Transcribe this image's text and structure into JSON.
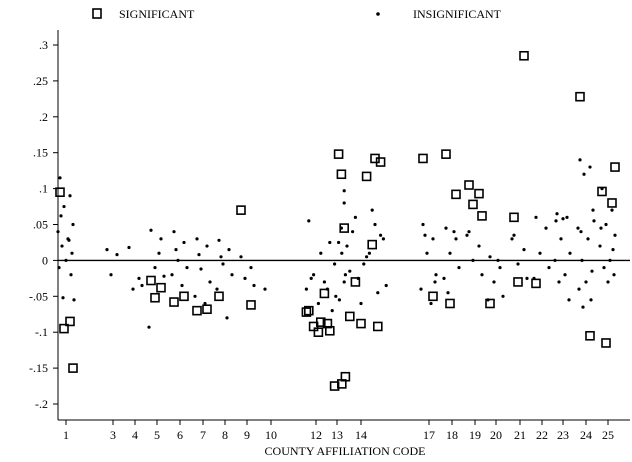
{
  "chart_data": {
    "type": "scatter",
    "xlabel": "COUNTY AFFILIATION CODE",
    "ylabel": "",
    "ylim": [
      -0.215,
      0.335
    ],
    "yticks": [
      {
        "value": 0.3,
        "label": ".3"
      },
      {
        "value": 0.25,
        "label": ".25"
      },
      {
        "value": 0.2,
        "label": ".2"
      },
      {
        "value": 0.15,
        "label": ".15"
      },
      {
        "value": 0.1,
        "label": ".1"
      },
      {
        "value": 0.05,
        "label": ".05"
      },
      {
        "value": 0,
        "label": "0"
      },
      {
        "value": -0.05,
        "label": "-.05"
      },
      {
        "value": -0.1,
        "label": "-.1"
      },
      {
        "value": -0.15,
        "label": "-.15"
      },
      {
        "value": -0.2,
        "label": "-.2"
      }
    ],
    "xticks": [
      "1",
      "3",
      "4",
      "5",
      "6",
      "7",
      "8",
      "9",
      "10",
      "12",
      "13",
      "14",
      "17",
      "18",
      "19",
      "20",
      "21",
      "22",
      "23",
      "24",
      "25"
    ],
    "reference_line": 0,
    "legend": {
      "position": "top",
      "significant": "SIGNIFICANT",
      "insignificant": "INSIGNIFICANT"
    },
    "series": [
      {
        "name": "SIGNIFICANT",
        "marker": "square",
        "points": [
          {
            "x": 1,
            "y": 0.095
          },
          {
            "x": 1,
            "y": -0.085
          },
          {
            "x": 1,
            "y": -0.095
          },
          {
            "x": 1,
            "y": -0.15
          },
          {
            "x": 5,
            "y": -0.028
          },
          {
            "x": 5,
            "y": -0.038
          },
          {
            "x": 5,
            "y": -0.052
          },
          {
            "x": 6,
            "y": -0.058
          },
          {
            "x": 6,
            "y": -0.05
          },
          {
            "x": 7,
            "y": -0.07
          },
          {
            "x": 7,
            "y": -0.068
          },
          {
            "x": 8,
            "y": -0.05
          },
          {
            "x": 9,
            "y": 0.07
          },
          {
            "x": 9,
            "y": -0.062
          },
          {
            "x": 12,
            "y": -0.07
          },
          {
            "x": 12,
            "y": -0.086
          },
          {
            "x": 12,
            "y": -0.092
          },
          {
            "x": 12,
            "y": -0.046
          },
          {
            "x": 12,
            "y": -0.072
          },
          {
            "x": 12,
            "y": -0.1
          },
          {
            "x": 13,
            "y": -0.098
          },
          {
            "x": 13,
            "y": -0.172
          },
          {
            "x": 13,
            "y": -0.175
          },
          {
            "x": 13,
            "y": -0.162
          },
          {
            "x": 13,
            "y": -0.088
          },
          {
            "x": 14,
            "y": 0.045
          },
          {
            "x": 14,
            "y": 0.022
          },
          {
            "x": 14,
            "y": -0.03
          },
          {
            "x": 14,
            "y": 0.137
          },
          {
            "x": 14,
            "y": 0.148
          },
          {
            "x": 14,
            "y": 0.117
          },
          {
            "x": 14,
            "y": -0.078
          },
          {
            "x": 14,
            "y": -0.092
          },
          {
            "x": 14,
            "y": -0.088
          },
          {
            "x": 14,
            "y": 0.12
          },
          {
            "x": 14,
            "y": 0.142
          },
          {
            "x": 17,
            "y": 0.142
          },
          {
            "x": 17,
            "y": -0.05
          },
          {
            "x": 18,
            "y": 0.148
          },
          {
            "x": 18,
            "y": 0.092
          },
          {
            "x": 18,
            "y": -0.06
          },
          {
            "x": 19,
            "y": 0.105
          },
          {
            "x": 19,
            "y": 0.093
          },
          {
            "x": 19,
            "y": 0.078
          },
          {
            "x": 19,
            "y": 0.062
          },
          {
            "x": 20,
            "y": -0.06
          },
          {
            "x": 21,
            "y": 0.06
          },
          {
            "x": 21,
            "y": 0.285
          },
          {
            "x": 21,
            "y": -0.03
          },
          {
            "x": 22,
            "y": -0.032
          },
          {
            "x": 24,
            "y": 0.228
          },
          {
            "x": 24,
            "y": -0.105
          },
          {
            "x": 25,
            "y": 0.096
          },
          {
            "x": 25,
            "y": 0.08
          },
          {
            "x": 25,
            "y": -0.115
          },
          {
            "x": 25,
            "y": 0.13
          }
        ]
      },
      {
        "name": "INSIGNIFICANT",
        "marker": "dot",
        "points": [
          {
            "x": 1,
            "y": 0.115
          },
          {
            "x": 1,
            "y": 0.09
          },
          {
            "x": 1,
            "y": 0.075
          },
          {
            "x": 1,
            "y": 0.05
          },
          {
            "x": 1,
            "y": 0.04
          },
          {
            "x": 1,
            "y": 0.03
          },
          {
            "x": 1,
            "y": 0.02
          },
          {
            "x": 1,
            "y": 0.01
          },
          {
            "x": 1,
            "y": 0.0
          },
          {
            "x": 1,
            "y": -0.01
          },
          {
            "x": 1,
            "y": -0.02
          },
          {
            "x": 1,
            "y": -0.052
          },
          {
            "x": 1,
            "y": -0.055
          },
          {
            "x": 1,
            "y": 0.062
          },
          {
            "x": 1,
            "y": 0.028
          },
          {
            "x": 3,
            "y": 0.015
          },
          {
            "x": 3,
            "y": 0.008
          },
          {
            "x": 3,
            "y": -0.02
          },
          {
            "x": 4,
            "y": 0.018
          },
          {
            "x": 4,
            "y": -0.025
          },
          {
            "x": 4,
            "y": -0.04
          },
          {
            "x": 4,
            "y": -0.035
          },
          {
            "x": 5,
            "y": 0.042
          },
          {
            "x": 5,
            "y": 0.03
          },
          {
            "x": 5,
            "y": -0.01
          },
          {
            "x": 5,
            "y": -0.022
          },
          {
            "x": 5,
            "y": -0.093
          },
          {
            "x": 5,
            "y": 0.01
          },
          {
            "x": 6,
            "y": 0.04
          },
          {
            "x": 6,
            "y": 0.025
          },
          {
            "x": 6,
            "y": 0.0
          },
          {
            "x": 6,
            "y": -0.01
          },
          {
            "x": 6,
            "y": -0.02
          },
          {
            "x": 6,
            "y": -0.035
          },
          {
            "x": 6,
            "y": 0.015
          },
          {
            "x": 7,
            "y": 0.03
          },
          {
            "x": 7,
            "y": 0.02
          },
          {
            "x": 7,
            "y": -0.012
          },
          {
            "x": 7,
            "y": -0.03
          },
          {
            "x": 7,
            "y": -0.05
          },
          {
            "x": 7,
            "y": -0.06
          },
          {
            "x": 7,
            "y": 0.008
          },
          {
            "x": 8,
            "y": 0.028
          },
          {
            "x": 8,
            "y": 0.015
          },
          {
            "x": 8,
            "y": -0.005
          },
          {
            "x": 8,
            "y": -0.02
          },
          {
            "x": 8,
            "y": -0.04
          },
          {
            "x": 8,
            "y": -0.08
          },
          {
            "x": 8,
            "y": 0.005
          },
          {
            "x": 9,
            "y": 0.005
          },
          {
            "x": 9,
            "y": -0.01
          },
          {
            "x": 9,
            "y": -0.025
          },
          {
            "x": 9,
            "y": -0.035
          },
          {
            "x": 10,
            "y": -0.04
          },
          {
            "x": 12,
            "y": 0.055
          },
          {
            "x": 12,
            "y": 0.01
          },
          {
            "x": 12,
            "y": -0.02
          },
          {
            "x": 12,
            "y": -0.03
          },
          {
            "x": 12,
            "y": -0.04
          },
          {
            "x": 12,
            "y": -0.06
          },
          {
            "x": 12,
            "y": -0.025
          },
          {
            "x": 13,
            "y": 0.025
          },
          {
            "x": 13,
            "y": 0.01
          },
          {
            "x": 13,
            "y": -0.005
          },
          {
            "x": 13,
            "y": -0.02
          },
          {
            "x": 13,
            "y": -0.04
          },
          {
            "x": 13,
            "y": -0.055
          },
          {
            "x": 13,
            "y": -0.07
          },
          {
            "x": 13,
            "y": -0.03
          },
          {
            "x": 14,
            "y": 0.097
          },
          {
            "x": 14,
            "y": 0.07
          },
          {
            "x": 14,
            "y": 0.06
          },
          {
            "x": 14,
            "y": 0.035
          },
          {
            "x": 14,
            "y": 0.025
          },
          {
            "x": 14,
            "y": 0.005
          },
          {
            "x": 14,
            "y": -0.015
          },
          {
            "x": 14,
            "y": -0.045
          },
          {
            "x": 14,
            "y": -0.06
          },
          {
            "x": 14,
            "y": 0.045
          },
          {
            "x": 14,
            "y": 0.05
          },
          {
            "x": 14,
            "y": 0.04
          },
          {
            "x": 14,
            "y": 0.03
          },
          {
            "x": 14,
            "y": 0.02
          },
          {
            "x": 14,
            "y": 0.01
          },
          {
            "x": 14,
            "y": -0.005
          },
          {
            "x": 14,
            "y": -0.025
          },
          {
            "x": 14,
            "y": -0.035
          },
          {
            "x": 14,
            "y": -0.05
          },
          {
            "x": 14,
            "y": 0.08
          },
          {
            "x": 17,
            "y": 0.05
          },
          {
            "x": 17,
            "y": 0.03
          },
          {
            "x": 17,
            "y": 0.01
          },
          {
            "x": 17,
            "y": -0.02
          },
          {
            "x": 17,
            "y": -0.04
          },
          {
            "x": 17,
            "y": -0.06
          },
          {
            "x": 17,
            "y": 0.035
          },
          {
            "x": 17,
            "y": -0.03
          },
          {
            "x": 18,
            "y": 0.045
          },
          {
            "x": 18,
            "y": 0.03
          },
          {
            "x": 18,
            "y": 0.01
          },
          {
            "x": 18,
            "y": -0.01
          },
          {
            "x": 18,
            "y": -0.025
          },
          {
            "x": 18,
            "y": 0.04
          },
          {
            "x": 18,
            "y": -0.045
          },
          {
            "x": 19,
            "y": 0.04
          },
          {
            "x": 19,
            "y": 0.02
          },
          {
            "x": 19,
            "y": 0.0
          },
          {
            "x": 19,
            "y": -0.02
          },
          {
            "x": 19,
            "y": 0.035
          },
          {
            "x": 20,
            "y": 0.005
          },
          {
            "x": 20,
            "y": -0.01
          },
          {
            "x": 20,
            "y": -0.03
          },
          {
            "x": 20,
            "y": -0.05
          },
          {
            "x": 20,
            "y": -0.055
          },
          {
            "x": 20,
            "y": 0.0
          },
          {
            "x": 21,
            "y": 0.035
          },
          {
            "x": 21,
            "y": 0.015
          },
          {
            "x": 21,
            "y": -0.005
          },
          {
            "x": 21,
            "y": -0.025
          },
          {
            "x": 21,
            "y": 0.03
          },
          {
            "x": 22,
            "y": 0.06
          },
          {
            "x": 22,
            "y": 0.045
          },
          {
            "x": 22,
            "y": 0.01
          },
          {
            "x": 22,
            "y": -0.01
          },
          {
            "x": 22,
            "y": -0.025
          },
          {
            "x": 23,
            "y": 0.065
          },
          {
            "x": 23,
            "y": 0.06
          },
          {
            "x": 23,
            "y": 0.03
          },
          {
            "x": 23,
            "y": 0.01
          },
          {
            "x": 23,
            "y": 0.0
          },
          {
            "x": 23,
            "y": -0.02
          },
          {
            "x": 23,
            "y": -0.03
          },
          {
            "x": 23,
            "y": -0.055
          },
          {
            "x": 23,
            "y": 0.058
          },
          {
            "x": 23,
            "y": 0.055
          },
          {
            "x": 24,
            "y": 0.14
          },
          {
            "x": 24,
            "y": 0.13
          },
          {
            "x": 24,
            "y": 0.12
          },
          {
            "x": 24,
            "y": 0.07
          },
          {
            "x": 24,
            "y": 0.045
          },
          {
            "x": 24,
            "y": 0.03
          },
          {
            "x": 24,
            "y": 0.0
          },
          {
            "x": 24,
            "y": -0.015
          },
          {
            "x": 24,
            "y": -0.03
          },
          {
            "x": 24,
            "y": -0.04
          },
          {
            "x": 24,
            "y": -0.055
          },
          {
            "x": 24,
            "y": -0.065
          },
          {
            "x": 24,
            "y": 0.055
          },
          {
            "x": 24,
            "y": 0.04
          },
          {
            "x": 25,
            "y": 0.1
          },
          {
            "x": 25,
            "y": 0.07
          },
          {
            "x": 25,
            "y": 0.05
          },
          {
            "x": 25,
            "y": 0.035
          },
          {
            "x": 25,
            "y": 0.02
          },
          {
            "x": 25,
            "y": 0.0
          },
          {
            "x": 25,
            "y": -0.01
          },
          {
            "x": 25,
            "y": -0.02
          },
          {
            "x": 25,
            "y": -0.03
          },
          {
            "x": 25,
            "y": 0.045
          },
          {
            "x": 25,
            "y": 0.015
          }
        ]
      }
    ]
  }
}
